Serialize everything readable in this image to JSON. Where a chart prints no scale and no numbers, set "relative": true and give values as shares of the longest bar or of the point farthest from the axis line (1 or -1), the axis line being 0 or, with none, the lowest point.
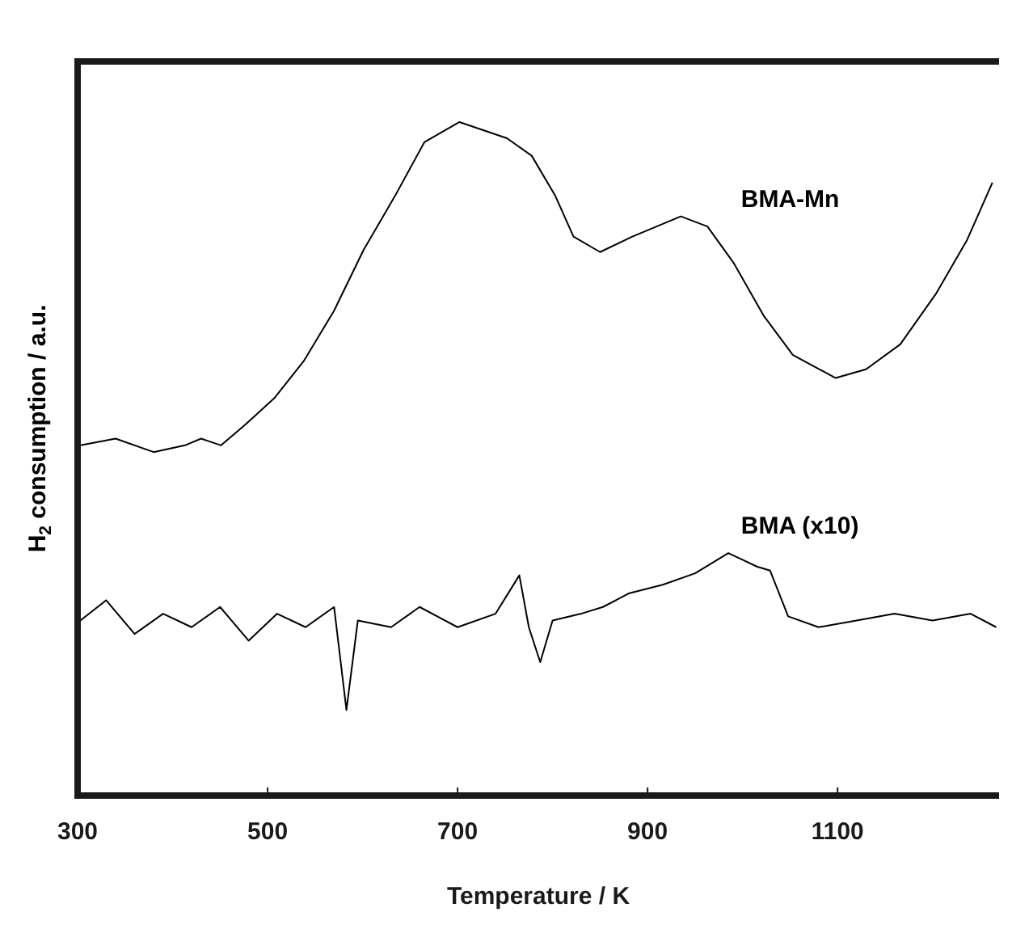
{
  "chart_data": {
    "type": "line",
    "xlabel": "Temperature / K",
    "ylabel": "H$_{2}$ consumption / a.u.",
    "relative": true,
    "xlim": [
      300,
      1270
    ],
    "xticks": [
      300,
      500,
      700,
      900,
      1100
    ],
    "grid": false,
    "legend": false,
    "marker": "none",
    "line_style": "solid",
    "series": [
      {
        "name": "BMA-Mn",
        "color": "#000000",
        "x": [
          303,
          340,
          380,
          413,
          430,
          451,
          476,
          507,
          538,
          570,
          601,
          634,
          665,
          702,
          752,
          778,
          803,
          822,
          850,
          884,
          935,
          963,
          991,
          1022,
          1053,
          1098,
          1130,
          1166,
          1204,
          1236,
          1263
        ],
        "values": [
          0.52,
          0.53,
          0.51,
          0.52,
          0.53,
          0.52,
          0.55,
          0.59,
          0.645,
          0.72,
          0.81,
          0.89,
          0.97,
          1,
          0.976,
          0.95,
          0.89,
          0.83,
          0.807,
          0.83,
          0.86,
          0.845,
          0.79,
          0.713,
          0.654,
          0.62,
          0.633,
          0.67,
          0.746,
          0.824,
          0.91
        ]
      },
      {
        "name": "BMA (x10)",
        "color": "#000000",
        "x": [
          303,
          330,
          360,
          390,
          420,
          450,
          480,
          510,
          540,
          570,
          583,
          595,
          630,
          660,
          700,
          740,
          765,
          775,
          787,
          800,
          830,
          853,
          880,
          916,
          950,
          985,
          1000,
          1015,
          1029,
          1048,
          1080,
          1120,
          1160,
          1200,
          1240,
          1267
        ],
        "values": [
          0.26,
          0.29,
          0.24,
          0.27,
          0.25,
          0.28,
          0.23,
          0.27,
          0.25,
          0.28,
          0.127,
          0.26,
          0.25,
          0.28,
          0.25,
          0.27,
          0.327,
          0.25,
          0.198,
          0.26,
          0.27,
          0.28,
          0.3,
          0.313,
          0.33,
          0.36,
          0.35,
          0.34,
          0.334,
          0.266,
          0.25,
          0.26,
          0.27,
          0.26,
          0.27,
          0.25
        ]
      }
    ]
  }
}
